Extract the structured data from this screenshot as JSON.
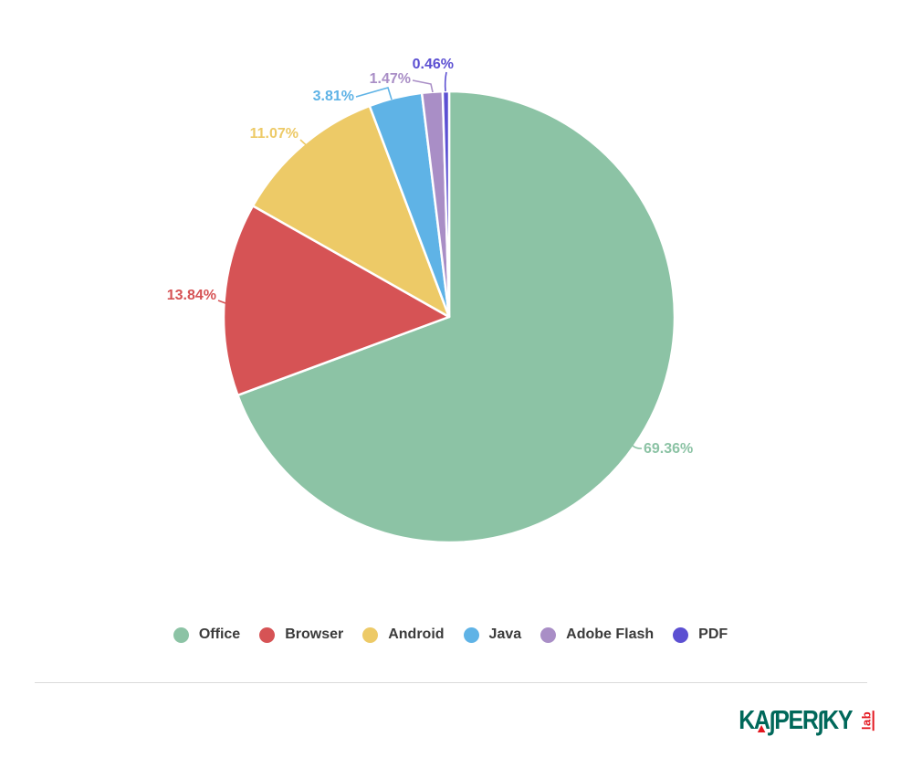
{
  "chart_data": {
    "type": "pie",
    "title": "",
    "categories": [
      "Office",
      "Browser",
      "Android",
      "Java",
      "Adobe Flash",
      "PDF"
    ],
    "values": [
      69.36,
      13.84,
      11.07,
      3.81,
      1.47,
      0.46
    ],
    "labels": [
      "69.36%",
      "13.84%",
      "11.07%",
      "3.81%",
      "1.47%",
      "0.46%"
    ],
    "colors": [
      "#8CC3A5",
      "#D65355",
      "#EDCA67",
      "#5FB3E6",
      "#A98EC6",
      "#5C50D2"
    ],
    "start_angle": 0,
    "direction": "clockwise",
    "slice_border_color": "#ffffff",
    "legend_position": "bottom"
  },
  "branding": {
    "wordmark_k1": "K",
    "wordmark_a1": "A",
    "wordmark_s1": "∫",
    "wordmark_per": "PER",
    "wordmark_s2": "∫",
    "wordmark_ky": "KY",
    "sub": "lab",
    "green": "#00685A",
    "red": "#E3161E"
  }
}
